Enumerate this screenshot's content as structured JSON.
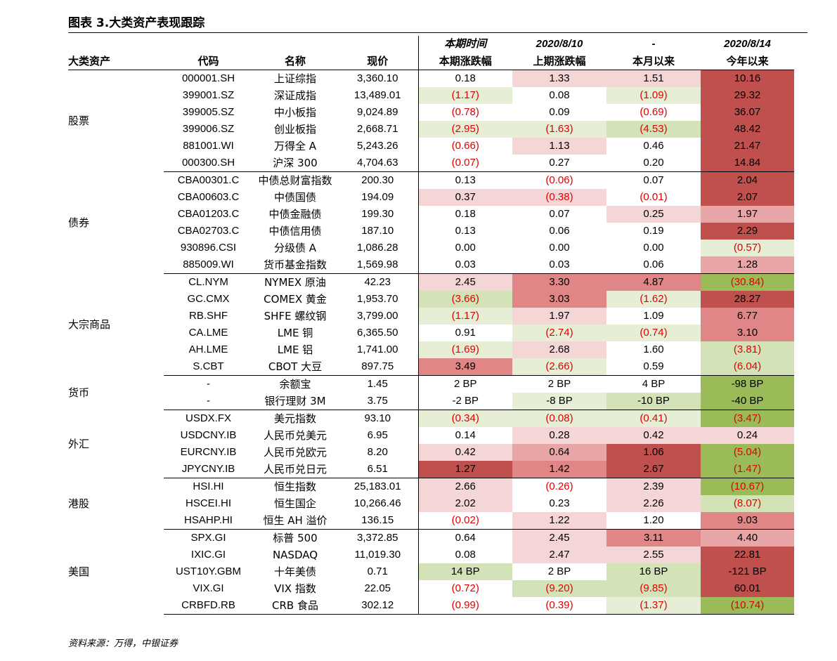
{
  "title": "图表 3.大类资产表现跟踪",
  "source_note": "资料来源：万得，中银证券",
  "colors": {
    "c0": "#ffffff",
    "c1": "#f5d6d6",
    "c2": "#e8a6a6",
    "c3": "#e08686",
    "c4": "#c0504d",
    "g1": "#e6eed6",
    "g2": "#d3e3b7",
    "g3": "#9bbb59",
    "neg_text": "#e00000"
  },
  "header": {
    "row1": [
      "",
      "",
      "",
      "",
      "本期时间",
      "2020/8/10",
      "-",
      "2020/8/14"
    ],
    "row2": [
      "大类资产",
      "代码",
      "名称",
      "现价",
      "本期涨跌幅",
      "上期涨跌幅",
      "本月以来",
      "今年以来"
    ]
  },
  "groups": [
    {
      "category": "股票",
      "rows": [
        {
          "code": "000001.SH",
          "name": "上证综指",
          "price": "3,360.10",
          "v": [
            {
              "t": "0.18",
              "c": "c0"
            },
            {
              "t": "1.33",
              "c": "c1"
            },
            {
              "t": "1.51",
              "c": "c1"
            },
            {
              "t": "10.16",
              "c": "c4"
            }
          ]
        },
        {
          "code": "399001.SZ",
          "name": "深证成指",
          "price": "13,489.01",
          "v": [
            {
              "t": "(1.17)",
              "c": "g1"
            },
            {
              "t": "0.08",
              "c": "c0"
            },
            {
              "t": "(1.09)",
              "c": "g1"
            },
            {
              "t": "29.32",
              "c": "c4"
            }
          ]
        },
        {
          "code": "399005.SZ",
          "name": "中小板指",
          "price": "9,024.89",
          "v": [
            {
              "t": "(0.78)",
              "c": "c0"
            },
            {
              "t": "0.09",
              "c": "c0"
            },
            {
              "t": "(0.69)",
              "c": "c0"
            },
            {
              "t": "36.07",
              "c": "c4"
            }
          ]
        },
        {
          "code": "399006.SZ",
          "name": "创业板指",
          "price": "2,668.71",
          "v": [
            {
              "t": "(2.95)",
              "c": "g1"
            },
            {
              "t": "(1.63)",
              "c": "g1"
            },
            {
              "t": "(4.53)",
              "c": "g2"
            },
            {
              "t": "48.42",
              "c": "c4"
            }
          ]
        },
        {
          "code": "881001.WI",
          "name": "万得全 A",
          "price": "5,243.26",
          "v": [
            {
              "t": "(0.66)",
              "c": "c0"
            },
            {
              "t": "1.13",
              "c": "c1"
            },
            {
              "t": "0.46",
              "c": "c0"
            },
            {
              "t": "21.47",
              "c": "c4"
            }
          ]
        },
        {
          "code": "000300.SH",
          "name": "沪深 300",
          "price": "4,704.63",
          "v": [
            {
              "t": "(0.07)",
              "c": "c0"
            },
            {
              "t": "0.27",
              "c": "c0"
            },
            {
              "t": "0.20",
              "c": "c0"
            },
            {
              "t": "14.84",
              "c": "c4"
            }
          ]
        }
      ]
    },
    {
      "category": "债券",
      "rows": [
        {
          "code": "CBA00301.C",
          "name": "中债总财富指数",
          "price": "200.30",
          "v": [
            {
              "t": "0.13",
              "c": "c0"
            },
            {
              "t": "(0.06)",
              "c": "c0"
            },
            {
              "t": "0.07",
              "c": "c0"
            },
            {
              "t": "2.04",
              "c": "c4"
            }
          ]
        },
        {
          "code": "CBA00603.C",
          "name": "中债国债",
          "price": "194.09",
          "v": [
            {
              "t": "0.37",
              "c": "c1"
            },
            {
              "t": "(0.38)",
              "c": "c1"
            },
            {
              "t": "(0.01)",
              "c": "c0"
            },
            {
              "t": "2.07",
              "c": "c4"
            }
          ]
        },
        {
          "code": "CBA01203.C",
          "name": "中债金融债",
          "price": "199.30",
          "v": [
            {
              "t": "0.18",
              "c": "c0"
            },
            {
              "t": "0.07",
              "c": "c0"
            },
            {
              "t": "0.25",
              "c": "c1"
            },
            {
              "t": "1.97",
              "c": "c2"
            }
          ]
        },
        {
          "code": "CBA02703.C",
          "name": "中债信用债",
          "price": "187.10",
          "v": [
            {
              "t": "0.13",
              "c": "c0"
            },
            {
              "t": "0.06",
              "c": "c0"
            },
            {
              "t": "0.19",
              "c": "c0"
            },
            {
              "t": "2.29",
              "c": "c4"
            }
          ]
        },
        {
          "code": "930896.CSI",
          "name": "分级债 A",
          "price": "1,086.28",
          "v": [
            {
              "t": "0.00",
              "c": "c0"
            },
            {
              "t": "0.00",
              "c": "c0"
            },
            {
              "t": "0.00",
              "c": "c0"
            },
            {
              "t": "(0.57)",
              "c": "g1"
            }
          ]
        },
        {
          "code": "885009.WI",
          "name": "货币基金指数",
          "price": "1,569.98",
          "v": [
            {
              "t": "0.03",
              "c": "c0"
            },
            {
              "t": "0.03",
              "c": "c0"
            },
            {
              "t": "0.06",
              "c": "c0"
            },
            {
              "t": "1.28",
              "c": "c2"
            }
          ]
        }
      ]
    },
    {
      "category": "大宗商品",
      "rows": [
        {
          "code": "CL.NYM",
          "name": "NYMEX 原油",
          "price": "42.23",
          "v": [
            {
              "t": "2.45",
              "c": "c1"
            },
            {
              "t": "3.30",
              "c": "c3"
            },
            {
              "t": "4.87",
              "c": "c3"
            },
            {
              "t": "(30.84)",
              "c": "g3"
            }
          ]
        },
        {
          "code": "GC.CMX",
          "name": "COMEX 黄金",
          "price": "1,953.70",
          "v": [
            {
              "t": "(3.66)",
              "c": "g2"
            },
            {
              "t": "3.03",
              "c": "c3"
            },
            {
              "t": "(1.62)",
              "c": "g1"
            },
            {
              "t": "28.27",
              "c": "c4"
            }
          ]
        },
        {
          "code": "RB.SHF",
          "name": "SHFE 螺纹钢",
          "price": "3,799.00",
          "v": [
            {
              "t": "(1.17)",
              "c": "g1"
            },
            {
              "t": "1.97",
              "c": "c1"
            },
            {
              "t": "1.09",
              "c": "c0"
            },
            {
              "t": "6.77",
              "c": "c3"
            }
          ]
        },
        {
          "code": "CA.LME",
          "name": "LME 铜",
          "price": "6,365.50",
          "v": [
            {
              "t": "0.91",
              "c": "c0"
            },
            {
              "t": "(2.74)",
              "c": "g1"
            },
            {
              "t": "(0.74)",
              "c": "g1"
            },
            {
              "t": "3.10",
              "c": "c3"
            }
          ]
        },
        {
          "code": "AH.LME",
          "name": "LME 铝",
          "price": "1,741.00",
          "v": [
            {
              "t": "(1.69)",
              "c": "g1"
            },
            {
              "t": "2.68",
              "c": "c1"
            },
            {
              "t": "1.60",
              "c": "c0"
            },
            {
              "t": "(3.81)",
              "c": "g2"
            }
          ]
        },
        {
          "code": "S.CBT",
          "name": "CBOT 大豆",
          "price": "897.75",
          "v": [
            {
              "t": "3.49",
              "c": "c3"
            },
            {
              "t": "(2.66)",
              "c": "g1"
            },
            {
              "t": "0.59",
              "c": "c0"
            },
            {
              "t": "(6.04)",
              "c": "g2"
            }
          ]
        }
      ]
    },
    {
      "category": "货币",
      "rows": [
        {
          "code": "-",
          "name": "余额宝",
          "price": "1.45",
          "v": [
            {
              "t": "2 BP",
              "c": "c0"
            },
            {
              "t": "2 BP",
              "c": "c0"
            },
            {
              "t": "4 BP",
              "c": "c0"
            },
            {
              "t": "-98 BP",
              "c": "g3"
            }
          ]
        },
        {
          "code": "-",
          "name": "银行理财 3M",
          "price": "3.75",
          "v": [
            {
              "t": "-2 BP",
              "c": "c0"
            },
            {
              "t": "-8 BP",
              "c": "g1"
            },
            {
              "t": "-10 BP",
              "c": "g2"
            },
            {
              "t": "-40 BP",
              "c": "g3"
            }
          ]
        }
      ]
    },
    {
      "category": "外汇",
      "rows": [
        {
          "code": "USDX.FX",
          "name": "美元指数",
          "price": "93.10",
          "v": [
            {
              "t": "(0.34)",
              "c": "g1"
            },
            {
              "t": "(0.08)",
              "c": "g1"
            },
            {
              "t": "(0.41)",
              "c": "g1"
            },
            {
              "t": "(3.47)",
              "c": "g3"
            }
          ]
        },
        {
          "code": "USDCNY.IB",
          "name": "人民币兑美元",
          "price": "6.95",
          "v": [
            {
              "t": "0.14",
              "c": "c0"
            },
            {
              "t": "0.28",
              "c": "c1"
            },
            {
              "t": "0.42",
              "c": "c1"
            },
            {
              "t": "0.24",
              "c": "c1"
            }
          ]
        },
        {
          "code": "EURCNY.IB",
          "name": "人民币兑欧元",
          "price": "8.20",
          "v": [
            {
              "t": "0.42",
              "c": "c1"
            },
            {
              "t": "0.64",
              "c": "c2"
            },
            {
              "t": "1.06",
              "c": "c4"
            },
            {
              "t": "(5.04)",
              "c": "g3"
            }
          ]
        },
        {
          "code": "JPYCNY.IB",
          "name": "人民币兑日元",
          "price": "6.51",
          "v": [
            {
              "t": "1.27",
              "c": "c4"
            },
            {
              "t": "1.42",
              "c": "c3"
            },
            {
              "t": "2.67",
              "c": "c4"
            },
            {
              "t": "(1.47)",
              "c": "g3"
            }
          ]
        }
      ]
    },
    {
      "category": "港股",
      "rows": [
        {
          "code": "HSI.HI",
          "name": "恒生指数",
          "price": "25,183.01",
          "v": [
            {
              "t": "2.66",
              "c": "c1"
            },
            {
              "t": "(0.26)",
              "c": "c0"
            },
            {
              "t": "2.39",
              "c": "c1"
            },
            {
              "t": "(10.67)",
              "c": "g3"
            }
          ]
        },
        {
          "code": "HSCEI.HI",
          "name": "恒生国企",
          "price": "10,266.46",
          "v": [
            {
              "t": "2.02",
              "c": "c1"
            },
            {
              "t": "0.23",
              "c": "c0"
            },
            {
              "t": "2.26",
              "c": "c1"
            },
            {
              "t": "(8.07)",
              "c": "g2"
            }
          ]
        },
        {
          "code": "HSAHP.HI",
          "name": "恒生 AH 溢价",
          "price": "136.15",
          "v": [
            {
              "t": "(0.02)",
              "c": "c0"
            },
            {
              "t": "1.22",
              "c": "c1"
            },
            {
              "t": "1.20",
              "c": "c0"
            },
            {
              "t": "9.03",
              "c": "c3"
            }
          ]
        }
      ]
    },
    {
      "category": "美国",
      "rows": [
        {
          "code": "SPX.GI",
          "name": "标普 500",
          "price": "3,372.85",
          "v": [
            {
              "t": "0.64",
              "c": "c0"
            },
            {
              "t": "2.45",
              "c": "c1"
            },
            {
              "t": "3.11",
              "c": "c3"
            },
            {
              "t": "4.40",
              "c": "c2"
            }
          ]
        },
        {
          "code": "IXIC.GI",
          "name": "NASDAQ",
          "price": "11,019.30",
          "v": [
            {
              "t": "0.08",
              "c": "c0"
            },
            {
              "t": "2.47",
              "c": "c1"
            },
            {
              "t": "2.55",
              "c": "c1"
            },
            {
              "t": "22.81",
              "c": "c4"
            }
          ]
        },
        {
          "code": "UST10Y.GBM",
          "name": "十年美债",
          "price": "0.71",
          "v": [
            {
              "t": "14 BP",
              "c": "g2"
            },
            {
              "t": "2 BP",
              "c": "c0"
            },
            {
              "t": "16 BP",
              "c": "g2"
            },
            {
              "t": "-121 BP",
              "c": "c4"
            }
          ]
        },
        {
          "code": "VIX.GI",
          "name": "VIX 指数",
          "price": "22.05",
          "v": [
            {
              "t": "(0.72)",
              "c": "c0"
            },
            {
              "t": "(9.20)",
              "c": "g2"
            },
            {
              "t": "(9.85)",
              "c": "g2"
            },
            {
              "t": "60.01",
              "c": "c4"
            }
          ]
        },
        {
          "code": "CRBFD.RB",
          "name": "CRB 食品",
          "price": "302.12",
          "v": [
            {
              "t": "(0.99)",
              "c": "c0"
            },
            {
              "t": "(0.39)",
              "c": "c0"
            },
            {
              "t": "(1.37)",
              "c": "g1"
            },
            {
              "t": "(10.74)",
              "c": "g3"
            }
          ]
        }
      ]
    }
  ]
}
